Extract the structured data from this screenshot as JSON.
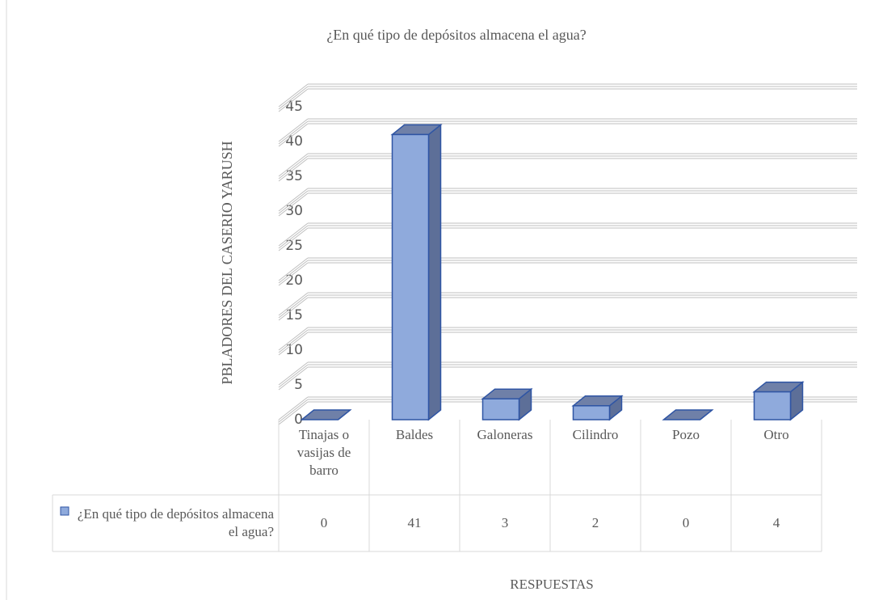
{
  "chart_data": {
    "type": "bar3d",
    "title": "¿En qué tipo de depósitos almacena el agua?",
    "y_label": "PBLADORES DEL CASERIO YARUSH",
    "x_label": "RESPUESTAS",
    "categories": [
      "Tinajas o vasijas de barro",
      "Baldes",
      "Galoneras",
      "Cilindro",
      "Pozo",
      "Otro"
    ],
    "series": [
      {
        "name": "¿En qué tipo de depósitos almacena el agua?",
        "color": "#8faadc",
        "values": [
          0,
          41,
          3,
          2,
          0,
          4
        ]
      }
    ],
    "ylim": [
      0,
      45
    ],
    "yticks": [
      0,
      5,
      10,
      15,
      20,
      25,
      30,
      35,
      40,
      45
    ],
    "grid": true
  }
}
